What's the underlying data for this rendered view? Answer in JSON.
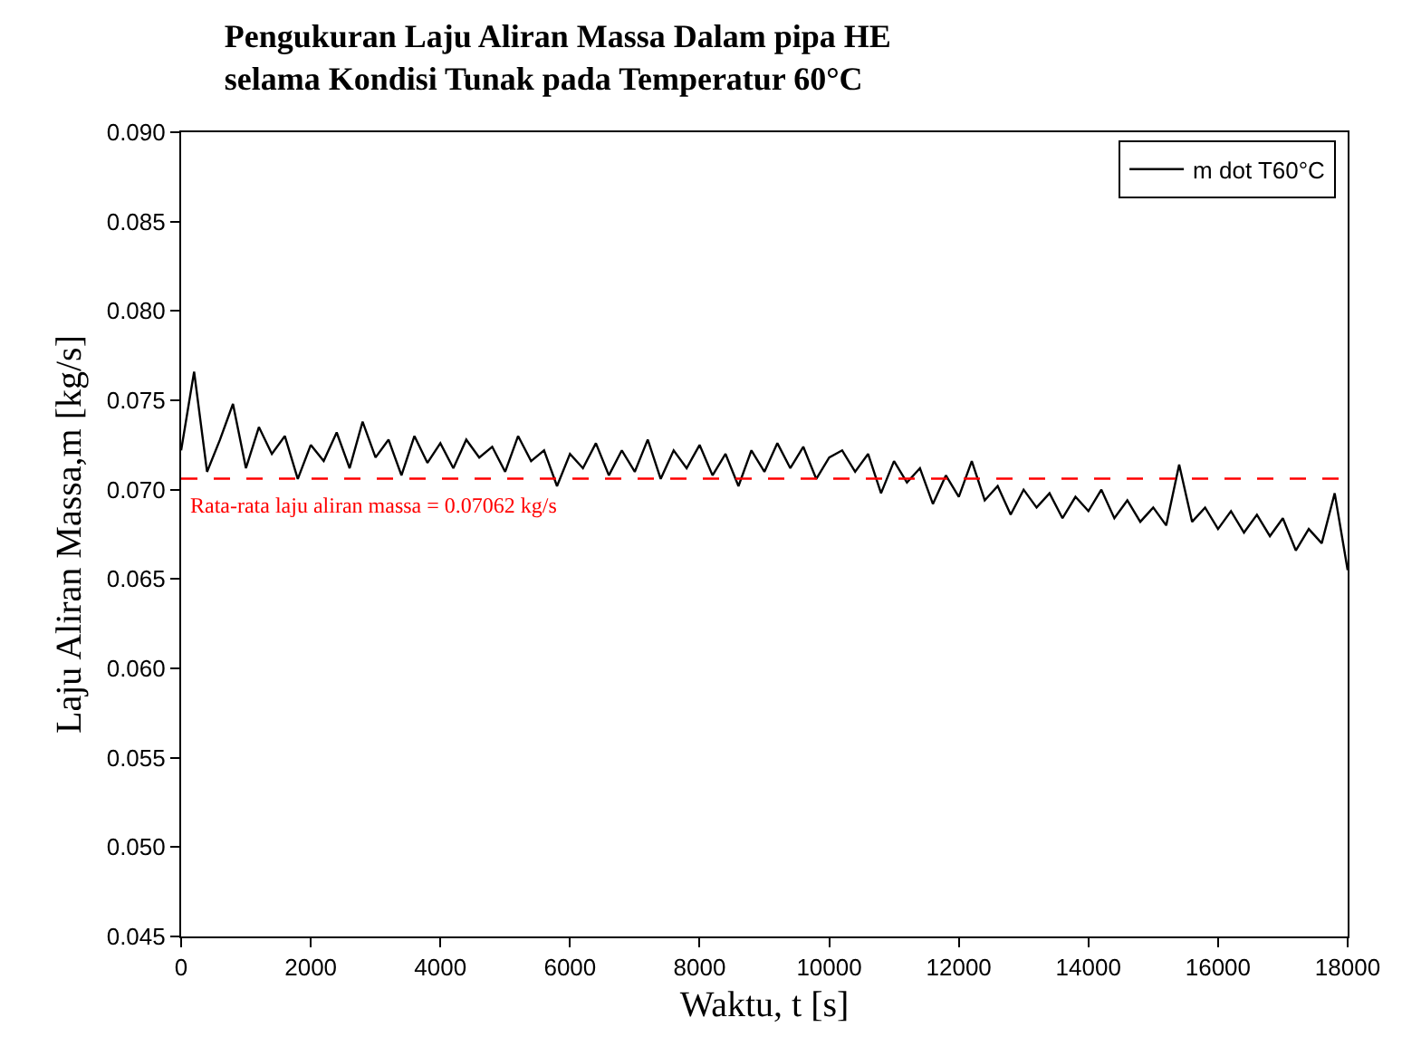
{
  "chart_data": {
    "type": "line",
    "title": "Pengukuran Laju Aliran Massa Dalam pipa HE\nselama Kondisi Tunak pada Temperatur 60°C",
    "xlabel": "Waktu, t [s]",
    "ylabel": "Laju Aliran Massa,m [kg/s]",
    "x": [
      0,
      200,
      400,
      600,
      800,
      1000,
      1200,
      1400,
      1600,
      1800,
      2000,
      2200,
      2400,
      2600,
      2800,
      3000,
      3200,
      3400,
      3600,
      3800,
      4000,
      4200,
      4400,
      4600,
      4800,
      5000,
      5200,
      5400,
      5600,
      5800,
      6000,
      6200,
      6400,
      6600,
      6800,
      7000,
      7200,
      7400,
      7600,
      7800,
      8000,
      8200,
      8400,
      8600,
      8800,
      9000,
      9200,
      9400,
      9600,
      9800,
      10000,
      10200,
      10400,
      10600,
      10800,
      11000,
      11200,
      11400,
      11600,
      11800,
      12000,
      12200,
      12400,
      12600,
      12800,
      13000,
      13200,
      13400,
      13600,
      13800,
      14000,
      14200,
      14400,
      14600,
      14800,
      15000,
      15200,
      15400,
      15600,
      15800,
      16000,
      16200,
      16400,
      16600,
      16800,
      17000,
      17200,
      17400,
      17600,
      17800,
      18000
    ],
    "series": [
      {
        "name": "m dot T60°C",
        "color": "#000000",
        "values": [
          0.0722,
          0.0766,
          0.071,
          0.0728,
          0.0748,
          0.0712,
          0.0735,
          0.072,
          0.073,
          0.0706,
          0.0725,
          0.0716,
          0.0732,
          0.0712,
          0.0738,
          0.0718,
          0.0728,
          0.0708,
          0.073,
          0.0715,
          0.0726,
          0.0712,
          0.0728,
          0.0718,
          0.0724,
          0.071,
          0.073,
          0.0716,
          0.0722,
          0.0702,
          0.072,
          0.0712,
          0.0726,
          0.0708,
          0.0722,
          0.071,
          0.0728,
          0.0706,
          0.0722,
          0.0712,
          0.0725,
          0.0708,
          0.072,
          0.0702,
          0.0722,
          0.071,
          0.0726,
          0.0712,
          0.0724,
          0.0706,
          0.0718,
          0.0722,
          0.071,
          0.072,
          0.0698,
          0.0716,
          0.0704,
          0.0712,
          0.0692,
          0.0708,
          0.0696,
          0.0716,
          0.0694,
          0.0702,
          0.0686,
          0.07,
          0.069,
          0.0698,
          0.0684,
          0.0696,
          0.0688,
          0.07,
          0.0684,
          0.0694,
          0.0682,
          0.069,
          0.068,
          0.0714,
          0.0682,
          0.069,
          0.0678,
          0.0688,
          0.0676,
          0.0686,
          0.0674,
          0.0684,
          0.0666,
          0.0678,
          0.067,
          0.0698,
          0.0655
        ]
      }
    ],
    "xlim": [
      0,
      18000
    ],
    "xticks": [
      0,
      2000,
      4000,
      6000,
      8000,
      10000,
      12000,
      14000,
      16000,
      18000
    ],
    "ylim": [
      0.045,
      0.09
    ],
    "yticks": [
      {
        "value": 0.045,
        "label": "0.045"
      },
      {
        "value": 0.05,
        "label": "0.050"
      },
      {
        "value": 0.055,
        "label": "0.055"
      },
      {
        "value": 0.06,
        "label": "0.060"
      },
      {
        "value": 0.065,
        "label": "0.065"
      },
      {
        "value": 0.07,
        "label": "0.070"
      },
      {
        "value": 0.075,
        "label": "0.075"
      },
      {
        "value": 0.08,
        "label": "0.080"
      },
      {
        "value": 0.085,
        "label": "0.085"
      },
      {
        "value": 0.09,
        "label": "0.090"
      }
    ],
    "ref_lines": [
      {
        "axis": "y",
        "value": 0.07062,
        "label": "Rata-rata laju aliran massa = 0.07062 kg/s",
        "color": "#ff0000",
        "line_style": "dashed"
      }
    ],
    "legend": "top right",
    "marker": "none",
    "line_style": "solid"
  }
}
